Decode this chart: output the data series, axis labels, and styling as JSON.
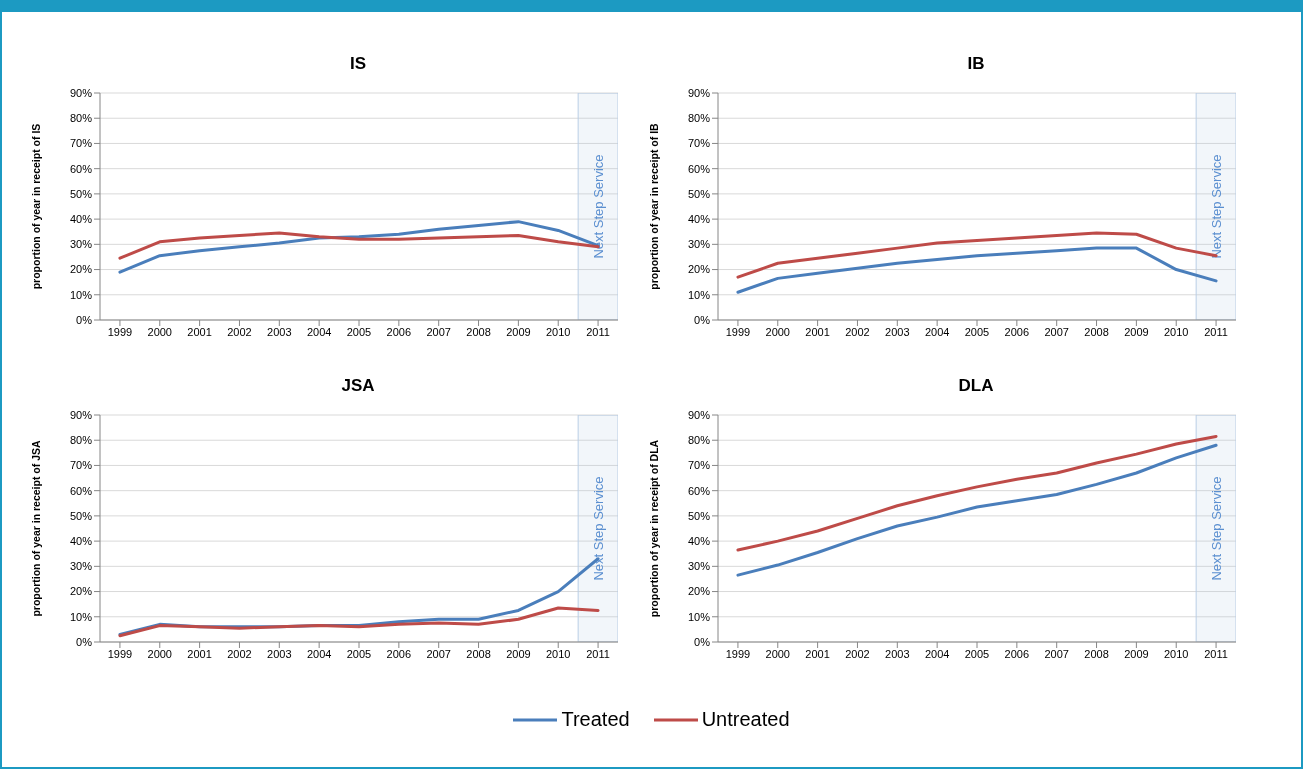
{
  "chart_data": [
    {
      "type": "line",
      "title": "IS",
      "ylabel": "proportion of year in receipt of IS",
      "categories": [
        "1999",
        "2000",
        "2001",
        "2002",
        "2003",
        "2004",
        "2005",
        "2006",
        "2007",
        "2008",
        "2009",
        "2010",
        "2011"
      ],
      "series": [
        {
          "name": "Treated",
          "color": "#4a7ebb",
          "values": [
            19,
            25.5,
            27.5,
            29,
            30.5,
            32.5,
            33,
            34,
            36,
            37.5,
            39,
            35.5,
            29.5
          ]
        },
        {
          "name": "Untreated",
          "color": "#be4b48",
          "values": [
            24.5,
            31,
            32.5,
            33.5,
            34.5,
            33,
            32,
            32,
            32.5,
            33,
            33.5,
            31,
            29
          ]
        }
      ],
      "ylim": [
        0,
        90
      ],
      "yticks": [
        {
          "value": 0,
          "label": "0%"
        },
        {
          "value": 10,
          "label": "10%"
        },
        {
          "value": 20,
          "label": "20%"
        },
        {
          "value": 30,
          "label": "30%"
        },
        {
          "value": 40,
          "label": "40%"
        },
        {
          "value": 50,
          "label": "50%"
        },
        {
          "value": 60,
          "label": "60%"
        },
        {
          "value": 70,
          "label": "70%"
        },
        {
          "value": 80,
          "label": "80%"
        },
        {
          "value": 90,
          "label": "90%"
        }
      ],
      "bands": [
        {
          "axis": "x",
          "from": "2011",
          "to": "2011",
          "label": "Next Step Service",
          "color": "#b9cde5"
        }
      ],
      "grid": "y",
      "legend": "bottom",
      "line_style": "solid",
      "marker": "none"
    },
    {
      "type": "line",
      "title": "IB",
      "ylabel": "proportion of year in receipt of IB",
      "categories": [
        "1999",
        "2000",
        "2001",
        "2002",
        "2003",
        "2004",
        "2005",
        "2006",
        "2007",
        "2008",
        "2009",
        "2010",
        "2011"
      ],
      "series": [
        {
          "color": "#4a7ebb",
          "values": [
            11,
            16.5,
            18.5,
            20.5,
            22.5,
            24,
            25.5,
            26.5,
            27.5,
            28.5,
            28.5,
            20,
            15.5
          ]
        },
        {
          "color": "#be4b48",
          "values": [
            17,
            22.5,
            24.5,
            26.5,
            28.5,
            30.5,
            31.5,
            32.5,
            33.5,
            34.5,
            34,
            28.5,
            25.5
          ]
        }
      ],
      "ylim": [
        0,
        90
      ],
      "yticks": [
        {
          "value": 0,
          "label": "0%"
        },
        {
          "value": 10,
          "label": "10%"
        },
        {
          "value": 20,
          "label": "20%"
        },
        {
          "value": 30,
          "label": "30%"
        },
        {
          "value": 40,
          "label": "40%"
        },
        {
          "value": 50,
          "label": "50%"
        },
        {
          "value": 60,
          "label": "60%"
        },
        {
          "value": 70,
          "label": "70%"
        },
        {
          "value": 80,
          "label": "80%"
        },
        {
          "value": 90,
          "label": "90%"
        }
      ],
      "bands": [
        {
          "axis": "x",
          "from": "2011",
          "to": "2011",
          "label": "Next Step Service",
          "color": "#b9cde5"
        }
      ],
      "grid": "y",
      "line_style": "solid",
      "marker": "none"
    },
    {
      "type": "line",
      "title": "JSA",
      "ylabel": "proportion of year in receipt of JSA",
      "categories": [
        "1999",
        "2000",
        "2001",
        "2002",
        "2003",
        "2004",
        "2005",
        "2006",
        "2007",
        "2008",
        "2009",
        "2010",
        "2011"
      ],
      "series": [
        {
          "color": "#4a7ebb",
          "values": [
            3,
            7,
            6,
            6,
            6,
            6.5,
            6.5,
            8,
            9,
            9,
            12.5,
            20,
            33
          ]
        },
        {
          "color": "#be4b48",
          "values": [
            2.5,
            6.5,
            6,
            5.5,
            6,
            6.5,
            6,
            7,
            7.5,
            7,
            9,
            13.5,
            12.5
          ]
        }
      ],
      "ylim": [
        0,
        90
      ],
      "yticks": [
        {
          "value": 0,
          "label": "0%"
        },
        {
          "value": 10,
          "label": "10%"
        },
        {
          "value": 20,
          "label": "20%"
        },
        {
          "value": 30,
          "label": "30%"
        },
        {
          "value": 40,
          "label": "40%"
        },
        {
          "value": 50,
          "label": "50%"
        },
        {
          "value": 60,
          "label": "60%"
        },
        {
          "value": 70,
          "label": "70%"
        },
        {
          "value": 80,
          "label": "80%"
        },
        {
          "value": 90,
          "label": "90%"
        }
      ],
      "bands": [
        {
          "axis": "x",
          "from": "2011",
          "to": "2011",
          "label": "Next Step Service",
          "color": "#b9cde5"
        }
      ],
      "grid": "y",
      "line_style": "solid",
      "marker": "none"
    },
    {
      "type": "line",
      "title": "DLA",
      "ylabel": "proportion of year in receipt of DLA",
      "categories": [
        "1999",
        "2000",
        "2001",
        "2002",
        "2003",
        "2004",
        "2005",
        "2006",
        "2007",
        "2008",
        "2009",
        "2010",
        "2011"
      ],
      "series": [
        {
          "color": "#4a7ebb",
          "values": [
            26.5,
            30.5,
            35.5,
            41,
            46,
            49.5,
            53.5,
            56,
            58.5,
            62.5,
            67,
            73,
            78
          ]
        },
        {
          "color": "#be4b48",
          "values": [
            36.5,
            40,
            44,
            49,
            54,
            58,
            61.5,
            64.5,
            67,
            71,
            74.5,
            78.5,
            81.5
          ]
        }
      ],
      "ylim": [
        0,
        90
      ],
      "yticks": [
        {
          "value": 0,
          "label": "0%"
        },
        {
          "value": 10,
          "label": "10%"
        },
        {
          "value": 20,
          "label": "20%"
        },
        {
          "value": 30,
          "label": "30%"
        },
        {
          "value": 40,
          "label": "40%"
        },
        {
          "value": 50,
          "label": "50%"
        },
        {
          "value": 60,
          "label": "60%"
        },
        {
          "value": 70,
          "label": "70%"
        },
        {
          "value": 80,
          "label": "80%"
        },
        {
          "value": 90,
          "label": "90%"
        }
      ],
      "bands": [
        {
          "axis": "x",
          "from": "2011",
          "to": "2011",
          "label": "Next Step Service",
          "color": "#b9cde5"
        }
      ],
      "grid": "y",
      "line_style": "solid",
      "marker": "none"
    }
  ]
}
